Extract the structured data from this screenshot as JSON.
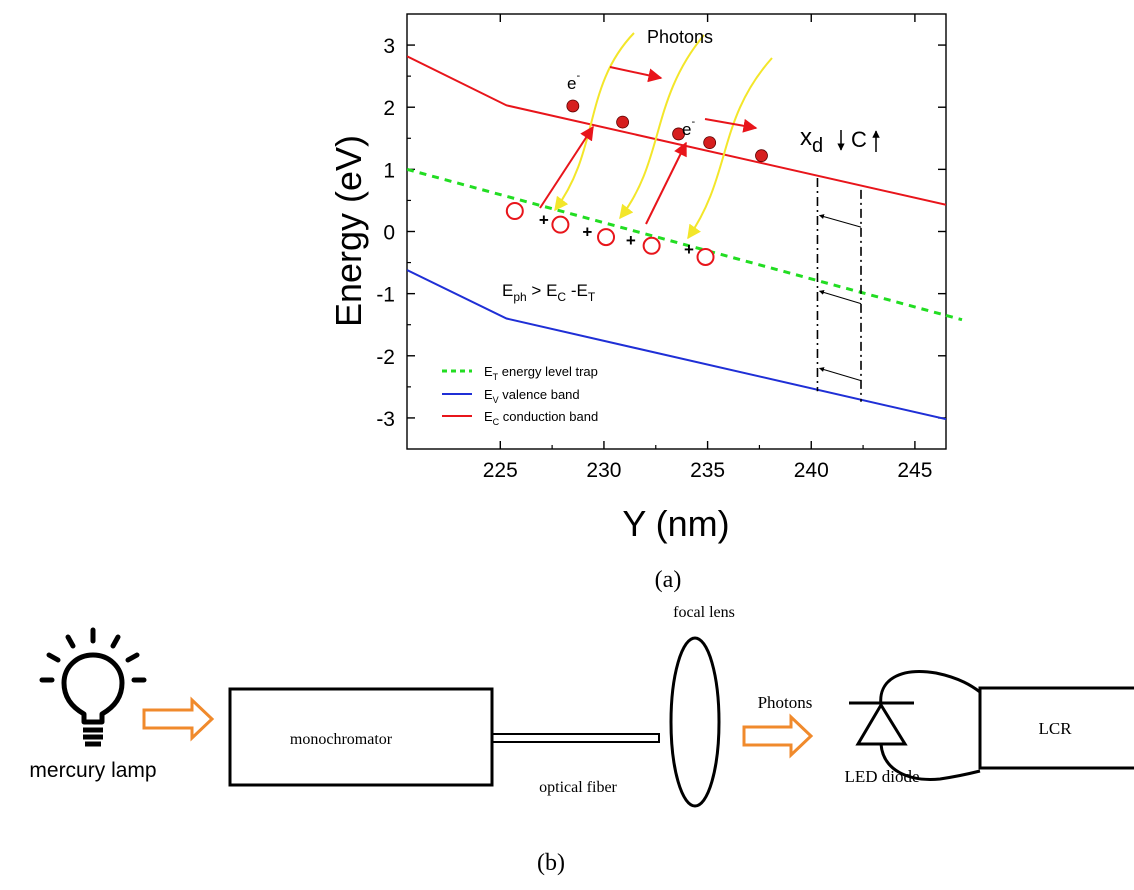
{
  "chart_data": {
    "type": "line",
    "xlabel": "Y (nm)",
    "ylabel": "Energy (eV)",
    "xlim": [
      220.5,
      246.5
    ],
    "ylim": [
      -3.5,
      3.5
    ],
    "xticks": [
      "225",
      "230",
      "235",
      "240",
      "245"
    ],
    "yticks": [
      "3",
      "2",
      "1",
      "0",
      "-1",
      "-2",
      "-3"
    ],
    "legend_position": "bottom-left",
    "series": [
      {
        "name": "E_T energy level trap",
        "color": "#22dd22",
        "style": "dashed",
        "x": [
          220.5,
          246.5
        ],
        "y": [
          1.0,
          -1.35
        ]
      },
      {
        "name": "E_V valence band",
        "color": "#1f2fd6",
        "style": "solid",
        "x": [
          220.5,
          225.3,
          246.5
        ],
        "y": [
          -0.62,
          -1.4,
          -3.02
        ]
      },
      {
        "name": "E_C conduction band",
        "color": "#e8151b",
        "style": "solid",
        "x": [
          220.5,
          225.3,
          246.5
        ],
        "y": [
          2.82,
          2.03,
          0.43
        ]
      }
    ],
    "electrons": {
      "x": [
        228.5,
        230.9,
        233.6,
        235.1,
        237.6
      ],
      "y": [
        2.02,
        1.76,
        1.57,
        1.43,
        1.22
      ]
    },
    "holes": {
      "x": [
        225.7,
        227.9,
        230.1,
        232.3,
        234.9
      ],
      "y": [
        0.33,
        0.11,
        -0.09,
        -0.23,
        -0.41
      ]
    },
    "plus_signs": {
      "x": [
        227.1,
        229.2,
        231.3,
        234.1
      ],
      "y": [
        0.19,
        0.0,
        -0.14,
        -0.28
      ]
    },
    "markers": {
      "electron_color": "#d61e1e",
      "hole_color": "#e8151b",
      "photon_color": "#f3e62a",
      "transition_color": "#e8151b"
    }
  },
  "annotations": {
    "photons_label": "Photons",
    "electron_label_1": "e",
    "electron_label_2": "e",
    "minus_superscript": "-",
    "plus_glyph": "+",
    "xd_base": "x",
    "xd_sub": "d",
    "c_label": "C",
    "condition_e": "E",
    "condition_ph": "ph",
    "condition_mid": " > E",
    "condition_c": "C",
    "condition_sep": " -E",
    "condition_t": "T"
  },
  "legend": {
    "items": [
      {
        "symbol": "E",
        "sub": "T",
        "text": " energy level trap"
      },
      {
        "symbol": "E",
        "sub": "V",
        "text": " valence band"
      },
      {
        "symbol": "E",
        "sub": "C",
        "text": " conduction band"
      }
    ]
  },
  "captions": {
    "a": "(a)",
    "b": "(b)"
  },
  "setup": {
    "lamp_label": "mercury lamp",
    "monochromator_label": "monochromator",
    "fiber_label": "optical fiber",
    "lens_label": "focal lens",
    "photons_label": "Photons",
    "diode_label": "LED diode",
    "lcr_label": "LCR",
    "arrow_color": "#f08a2c"
  }
}
